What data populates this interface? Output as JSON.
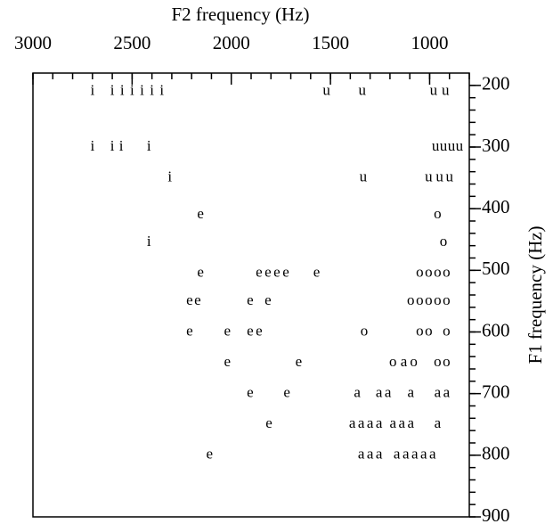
{
  "chart_data": {
    "type": "scatter",
    "xlabel": "F2 frequency (Hz)",
    "ylabel": "F1 frequency (Hz)",
    "xlim": [
      3000,
      800
    ],
    "ylim": [
      180,
      900
    ],
    "xticks": [
      3000,
      2500,
      2000,
      1500,
      1000
    ],
    "yticks": [
      200,
      300,
      400,
      500,
      600,
      700,
      800,
      900
    ],
    "xticks_minor": [
      3000,
      2900,
      2800,
      2700,
      2600,
      2500,
      2400,
      2300,
      2200,
      2100,
      2000,
      1900,
      1800,
      1700,
      1600,
      1500,
      1400,
      1300,
      1200,
      1100,
      1000,
      900,
      800
    ],
    "yticks_minor": [
      200,
      220,
      240,
      260,
      280,
      300,
      320,
      340,
      360,
      380,
      400,
      420,
      440,
      460,
      480,
      500,
      520,
      540,
      560,
      580,
      600,
      620,
      640,
      660,
      680,
      700,
      720,
      740,
      760,
      780,
      800,
      820,
      840,
      860,
      880,
      900
    ],
    "color": "#000000",
    "points": {
      "labels": [
        "i",
        "i",
        "i",
        "i",
        "i",
        "i",
        "i",
        "u",
        "u",
        "u",
        "u",
        "i",
        "i",
        "i",
        "i",
        "u",
        "u",
        "u",
        "u",
        "i",
        "u",
        "u",
        "u",
        "u",
        "e",
        "o",
        "i",
        "o",
        "e",
        "e",
        "e",
        "e",
        "e",
        "e",
        "o",
        "o",
        "o",
        "o",
        "e",
        "e",
        "e",
        "e",
        "o",
        "o",
        "o",
        "o",
        "o",
        "e",
        "e",
        "e",
        "e",
        "o",
        "o",
        "o",
        "o",
        "e",
        "e",
        "o",
        "a",
        "o",
        "o",
        "o",
        "e",
        "e",
        "a",
        "a",
        "a",
        "a",
        "a",
        "a",
        "e",
        "a",
        "a",
        "a",
        "a",
        "a",
        "a",
        "a",
        "a",
        "e",
        "a",
        "a",
        "a",
        "a",
        "a",
        "a",
        "a",
        "a"
      ],
      "x": [
        2700,
        2600,
        2550,
        2500,
        2450,
        2400,
        2350,
        1520,
        1340,
        980,
        920,
        2700,
        2600,
        2555,
        2415,
        970,
        930,
        890,
        850,
        2310,
        1335,
        1005,
        950,
        900,
        2155,
        960,
        2415,
        930,
        2155,
        1860,
        1815,
        1770,
        1725,
        1570,
        1050,
        1005,
        960,
        915,
        2210,
        2170,
        1905,
        1815,
        1095,
        1050,
        1005,
        960,
        915,
        2210,
        2020,
        1905,
        1860,
        1330,
        1050,
        1005,
        915,
        2020,
        1660,
        1185,
        1130,
        1080,
        960,
        915,
        1905,
        1720,
        1365,
        1255,
        1210,
        1095,
        960,
        915,
        1810,
        1390,
        1345,
        1300,
        1255,
        1185,
        1140,
        1095,
        960,
        2110,
        1345,
        1300,
        1255,
        1165,
        1120,
        1075,
        1030,
        985
      ],
      "y": [
        210,
        210,
        210,
        210,
        210,
        210,
        210,
        210,
        210,
        210,
        210,
        300,
        300,
        300,
        300,
        300,
        300,
        300,
        300,
        350,
        350,
        350,
        350,
        350,
        410,
        410,
        455,
        455,
        505,
        505,
        505,
        505,
        505,
        505,
        505,
        505,
        505,
        505,
        550,
        550,
        550,
        550,
        550,
        550,
        550,
        550,
        550,
        600,
        600,
        600,
        600,
        600,
        600,
        600,
        600,
        650,
        650,
        650,
        650,
        650,
        650,
        650,
        700,
        700,
        700,
        700,
        700,
        700,
        700,
        700,
        750,
        750,
        750,
        750,
        750,
        750,
        750,
        750,
        750,
        800,
        800,
        800,
        800,
        800,
        800,
        800,
        800,
        800
      ]
    }
  }
}
